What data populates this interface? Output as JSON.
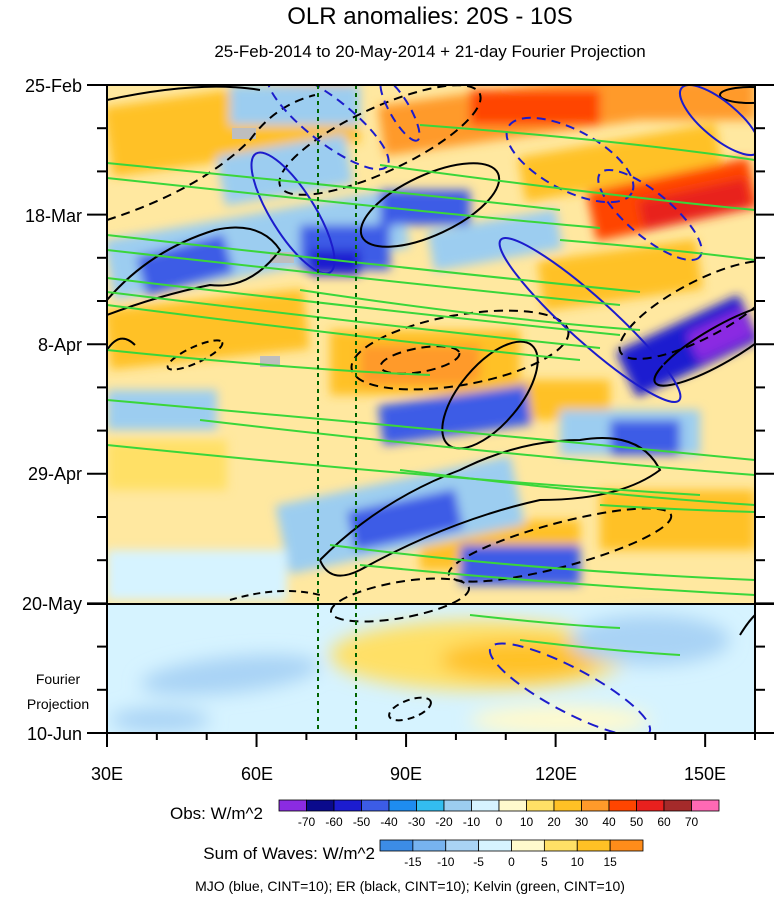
{
  "chart_data": {
    "type": "heatmap",
    "title": "OLR anomalies: 20S - 10S",
    "subtitle": "25-Feb-2014 to 20-May-2014 + 21-day Fourier Projection",
    "x_tick_labels": [
      "30E",
      "60E",
      "90E",
      "120E",
      "150E"
    ],
    "x_ticks": [
      30,
      60,
      90,
      120,
      150
    ],
    "x_range": [
      30,
      160
    ],
    "y_tick_labels": [
      "25-Feb",
      "18-Mar",
      "8-Apr",
      "29-Apr",
      "20-May",
      "10-Jun"
    ],
    "y_range_days": [
      0,
      105
    ],
    "projection_label_lines": [
      "Fourier",
      "Projection"
    ],
    "reference_lines_longitude": [
      73,
      80
    ],
    "colorbars": [
      {
        "title": "Obs: W/m^2",
        "ticks": [
          "-70",
          "-60",
          "-50",
          "-40",
          "-30",
          "-20",
          "-10",
          "0",
          "10",
          "20",
          "30",
          "40",
          "50",
          "60",
          "70"
        ],
        "colors": [
          "#8b2be2",
          "#0a0a8c",
          "#1c1cd0",
          "#3c5ce6",
          "#1e8cf0",
          "#33bdf0",
          "#9ccdf0",
          "#d6f3ff",
          "#fffacd",
          "#ffe066",
          "#ffc125",
          "#ff9a2a",
          "#ff4500",
          "#e8201e",
          "#a52a2a",
          "#ff69b4"
        ]
      },
      {
        "title": "Sum of Waves: W/m^2",
        "ticks": [
          "-15",
          "-10",
          "-5",
          "0",
          "5",
          "10",
          "15"
        ],
        "colors": [
          "#3c8ce6",
          "#77b3ef",
          "#a9d3f5",
          "#d6f3ff",
          "#fffacd",
          "#ffe066",
          "#ffc125",
          "#ff8c1a"
        ]
      }
    ],
    "footnote": "MJO (blue, CINT=10); ER (black, CINT=10); Kelvin (green, CINT=10)"
  }
}
